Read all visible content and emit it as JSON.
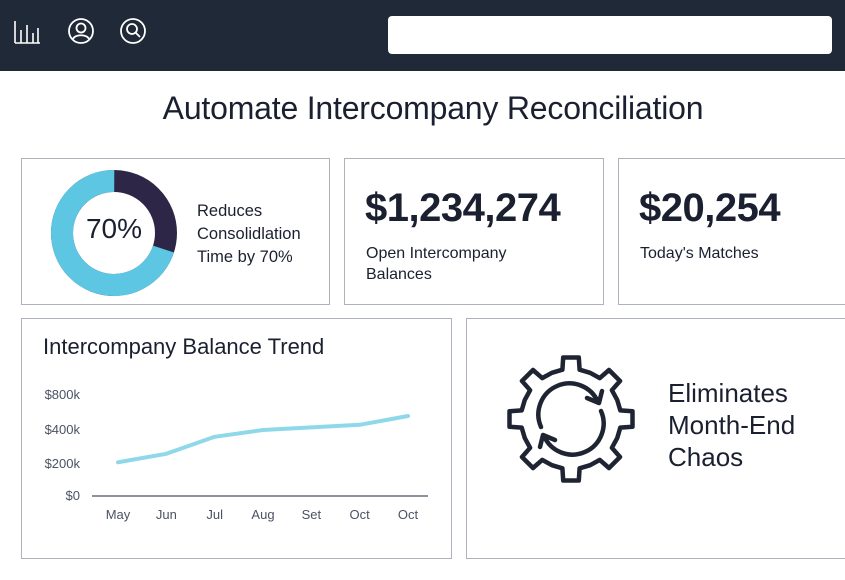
{
  "topbar": {
    "icons": [
      "bar-chart-icon",
      "user-icon",
      "search-user-icon"
    ],
    "search": {
      "value": "",
      "placeholder": ""
    }
  },
  "page": {
    "title": "Automate Intercompany Reconciliation"
  },
  "cards": {
    "consolidation": {
      "percent_label": "70%",
      "percent": 70,
      "text_lines": [
        "Reduces",
        "Consolidlation",
        "Time by 70%"
      ],
      "colors": {
        "filled": "#5dc7e3",
        "remaining": "#2d2647"
      }
    },
    "balances": {
      "value": "$1,234,274",
      "label": "Open Intercompany Balances"
    },
    "matches": {
      "value": "$20,254",
      "label": "Today's Matches"
    },
    "feature": {
      "icon": "refresh-gear-icon",
      "text_lines": [
        "Eliminates",
        "Month-End",
        "Chaos"
      ]
    }
  },
  "chart": {
    "title": "Intercompany Balance Trend"
  },
  "chart_data": {
    "type": "line",
    "title": "Intercompany Balance Trend",
    "xlabel": "",
    "ylabel": "",
    "categories": [
      "May",
      "Jun",
      "Jul",
      "Aug",
      "Set",
      "Oct",
      "Oct"
    ],
    "series": [
      {
        "values": [
          210000,
          260000,
          360000,
          400000,
          430000,
          460000,
          560000
        ],
        "color": "#8fd8ea"
      }
    ],
    "yticks": [
      0,
      200000,
      400000,
      800000
    ],
    "ytick_labels": [
      "$0",
      "$200k",
      "$400k",
      "$800k"
    ],
    "ylim": [
      0,
      800000
    ],
    "grid": false,
    "legend": "none"
  }
}
